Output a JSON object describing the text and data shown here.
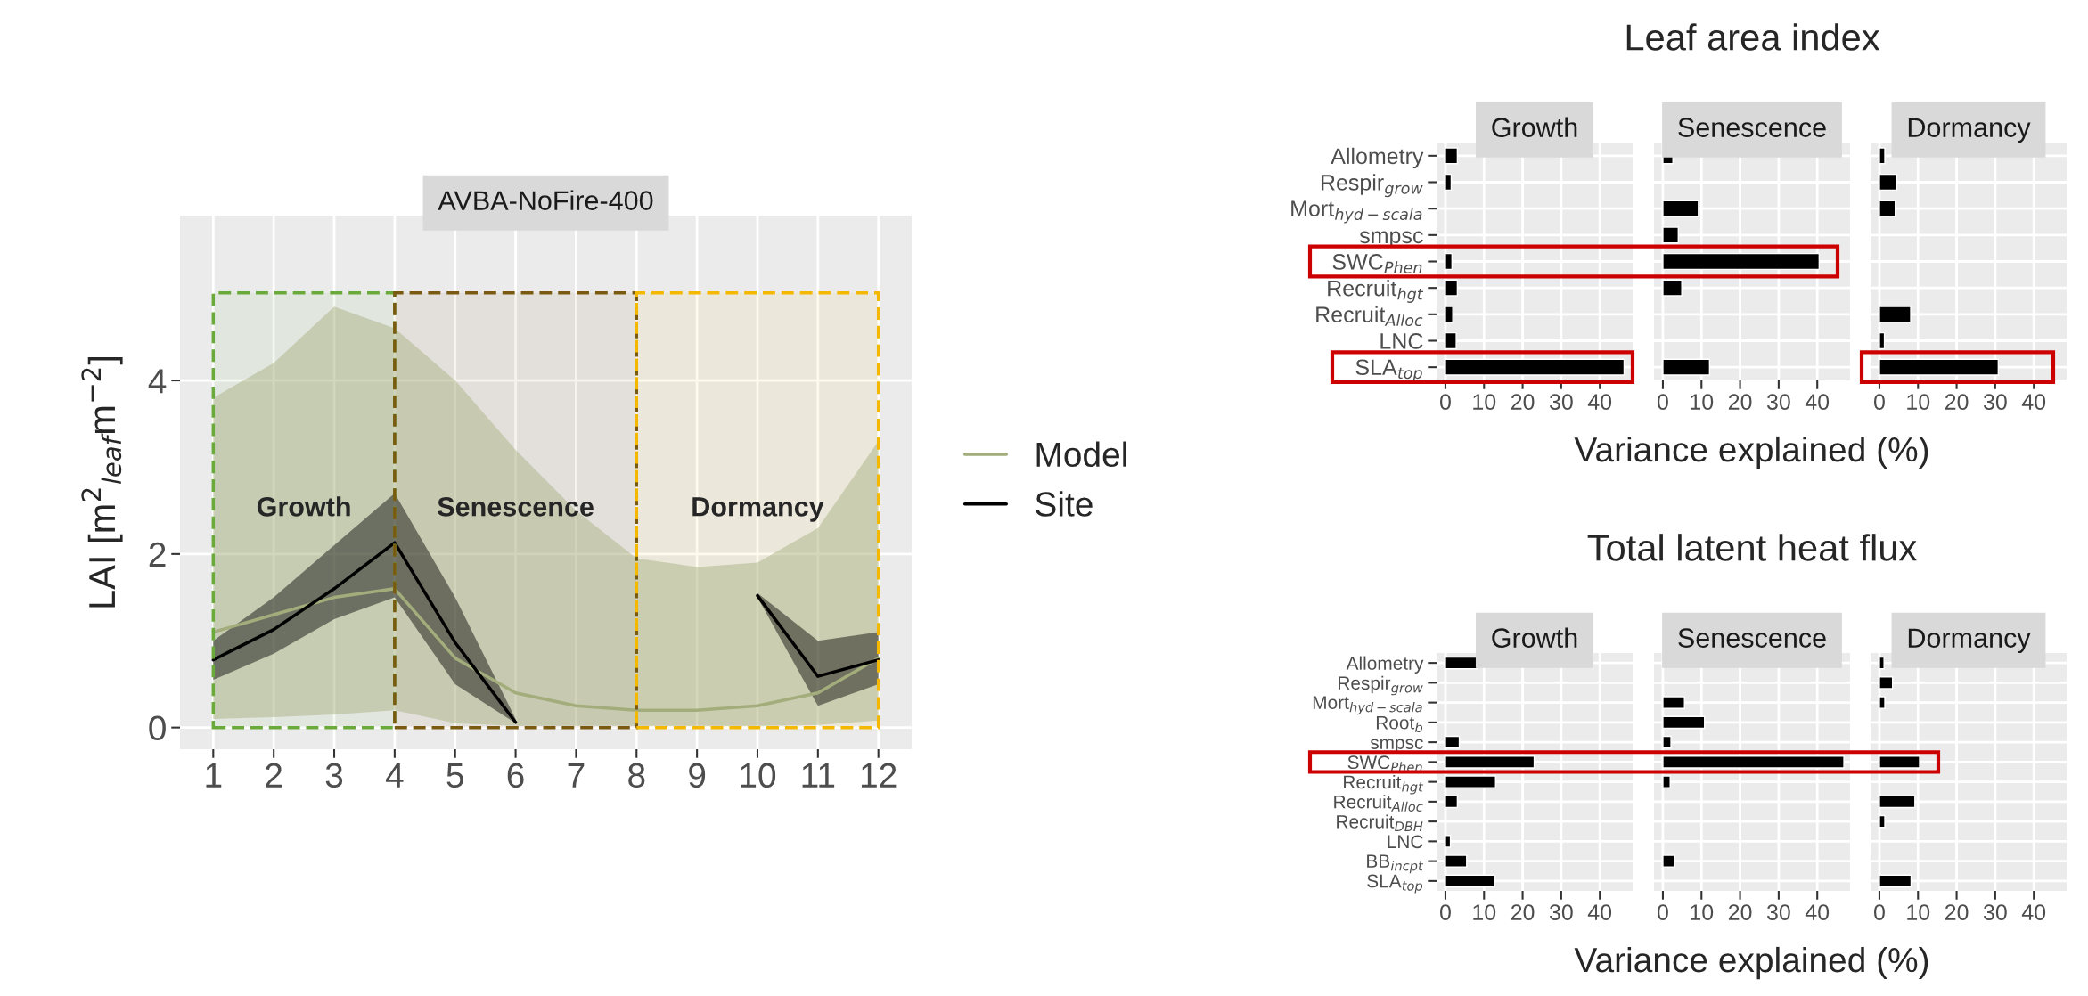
{
  "chart_data": [
    {
      "type": "line",
      "title": "AVBA-NoFire-400",
      "ylabel": "LAI [m$^{2}$$_{leaf}$m$^{−2}$]",
      "x": [
        1,
        2,
        3,
        4,
        5,
        6,
        7,
        8,
        9,
        10,
        11,
        12
      ],
      "series": [
        {
          "name": "Model",
          "color": "#a3ad7c",
          "values": [
            1.1,
            1.3,
            1.5,
            1.6,
            0.8,
            0.4,
            0.25,
            0.2,
            0.2,
            0.25,
            0.4,
            0.8
          ],
          "lower": [
            0.1,
            0.12,
            0.15,
            0.2,
            0.05,
            0.02,
            0.02,
            0.02,
            0.02,
            0.02,
            0.03,
            0.08
          ],
          "upper": [
            3.8,
            4.2,
            4.85,
            4.6,
            4.0,
            3.2,
            2.5,
            1.95,
            1.85,
            1.9,
            2.3,
            3.3
          ]
        },
        {
          "name": "Site",
          "color": "#000000",
          "values": [
            0.78,
            1.13,
            1.6,
            2.13,
            0.98,
            0.06,
            null,
            null,
            null,
            1.52,
            0.59,
            0.78
          ],
          "lower": [
            0.55,
            0.85,
            1.25,
            1.5,
            0.5,
            0.05,
            null,
            null,
            null,
            1.5,
            0.25,
            0.5
          ],
          "upper": [
            1.0,
            1.5,
            2.1,
            2.7,
            1.5,
            0.1,
            null,
            null,
            null,
            1.55,
            1.0,
            1.1
          ]
        }
      ],
      "bands": [
        {
          "axis": "x",
          "from": 1,
          "to": 4,
          "label": "Growth",
          "color": "#6aaa3a"
        },
        {
          "axis": "x",
          "from": 4,
          "to": 8,
          "label": "Senescence",
          "color": "#7a5a10"
        },
        {
          "axis": "x",
          "from": 8,
          "to": 12,
          "label": "Dormancy",
          "color": "#f5b800"
        }
      ],
      "xlim": [
        0.45,
        12.55
      ],
      "xticks": [
        1,
        2,
        3,
        4,
        5,
        6,
        7,
        8,
        9,
        10,
        11,
        12
      ],
      "ylim": [
        -0.25,
        5.9
      ],
      "yticks": [
        0,
        2,
        4
      ],
      "grid": true,
      "legend": "right",
      "line_style": "solid"
    },
    {
      "type": "bar",
      "orientation": "horizontal",
      "subtitle": "Growth",
      "categories": [
        "Allometry",
        "Respir$_{grow}$",
        "Mort$_{hyd−scala}$",
        "smpsc",
        "SWC$_{Phen}$",
        "Recruit$_{hgt}$",
        "Recruit$_{Alloc}$",
        "LNC",
        "SLA$_{top}$"
      ],
      "values": [
        3.1,
        1.5,
        null,
        null,
        1.7,
        3.1,
        1.9,
        2.8,
        46.3
      ],
      "color": "#000000",
      "xlim": [
        -2.3,
        48.5
      ],
      "xticks": [
        0,
        10,
        20,
        30,
        40
      ],
      "grid": true
    },
    {
      "type": "bar",
      "orientation": "horizontal",
      "title": "Leaf area index",
      "subtitle": "Senescence",
      "xlabel": "Variance explained (%)",
      "categories": [
        null,
        null,
        null,
        null,
        null,
        null,
        null,
        null,
        null
      ],
      "values": [
        2.6,
        null,
        9.2,
        4.0,
        40.5,
        4.9,
        null,
        null,
        12.1
      ],
      "color": "#000000",
      "xlim": [
        -2.3,
        48.5
      ],
      "xticks": [
        0,
        10,
        20,
        30,
        40
      ],
      "grid": true,
      "tick_labels": "x"
    },
    {
      "type": "bar",
      "orientation": "horizontal",
      "subtitle": "Dormancy",
      "categories": [
        null,
        null,
        null,
        null,
        null,
        null,
        null,
        null,
        null
      ],
      "values": [
        1.4,
        4.5,
        4.1,
        null,
        null,
        null,
        8.1,
        1.3,
        30.8
      ],
      "color": "#000000",
      "xlim": [
        -2.3,
        48.5
      ],
      "xticks": [
        0,
        10,
        20,
        30,
        40
      ],
      "grid": true,
      "tick_labels": "x"
    },
    {
      "type": "bar",
      "orientation": "horizontal",
      "subtitle": "Growth",
      "categories": [
        "Allometry",
        "Respir$_{grow}$",
        "Mort$_{hyd−scala}$",
        "Root$_{b}$",
        "smpsc",
        "SWC$_{Phen}$",
        "Recruit$_{hgt}$",
        "Recruit$_{Alloc}$",
        "Recruit$_{DBH}$",
        "LNC",
        "BB$_{incpt}$",
        "SLA$_{top}$"
      ],
      "values": [
        8.2,
        null,
        null,
        null,
        3.6,
        23.0,
        13.0,
        3.1,
        null,
        1.3,
        5.5,
        12.7
      ],
      "color": "#000000",
      "xlim": [
        -2.3,
        48.5
      ],
      "xticks": [
        0,
        10,
        20,
        30,
        40
      ],
      "grid": true
    },
    {
      "type": "bar",
      "orientation": "horizontal",
      "title": "Total latent heat flux",
      "subtitle": "Senescence",
      "xlabel": "Variance explained (%)",
      "categories": [
        null,
        null,
        null,
        null,
        null,
        null,
        null,
        null,
        null,
        null,
        null,
        null
      ],
      "values": [
        null,
        null,
        5.6,
        10.8,
        2.1,
        46.9,
        1.9,
        null,
        null,
        null,
        3.0,
        null
      ],
      "color": "#000000",
      "xlim": [
        -2.3,
        48.5
      ],
      "xticks": [
        0,
        10,
        20,
        30,
        40
      ],
      "grid": true,
      "tick_labels": "x"
    },
    {
      "type": "bar",
      "orientation": "horizontal",
      "subtitle": "Dormancy",
      "categories": [
        null,
        null,
        null,
        null,
        null,
        null,
        null,
        null,
        null,
        null,
        null,
        null
      ],
      "values": [
        1.2,
        3.4,
        1.4,
        null,
        null,
        10.4,
        null,
        9.2,
        1.4,
        null,
        null,
        8.2
      ],
      "color": "#000000",
      "xlim": [
        -2.3,
        48.5
      ],
      "xticks": [
        0,
        10,
        20,
        30,
        40
      ],
      "grid": true,
      "tick_labels": "x"
    }
  ]
}
